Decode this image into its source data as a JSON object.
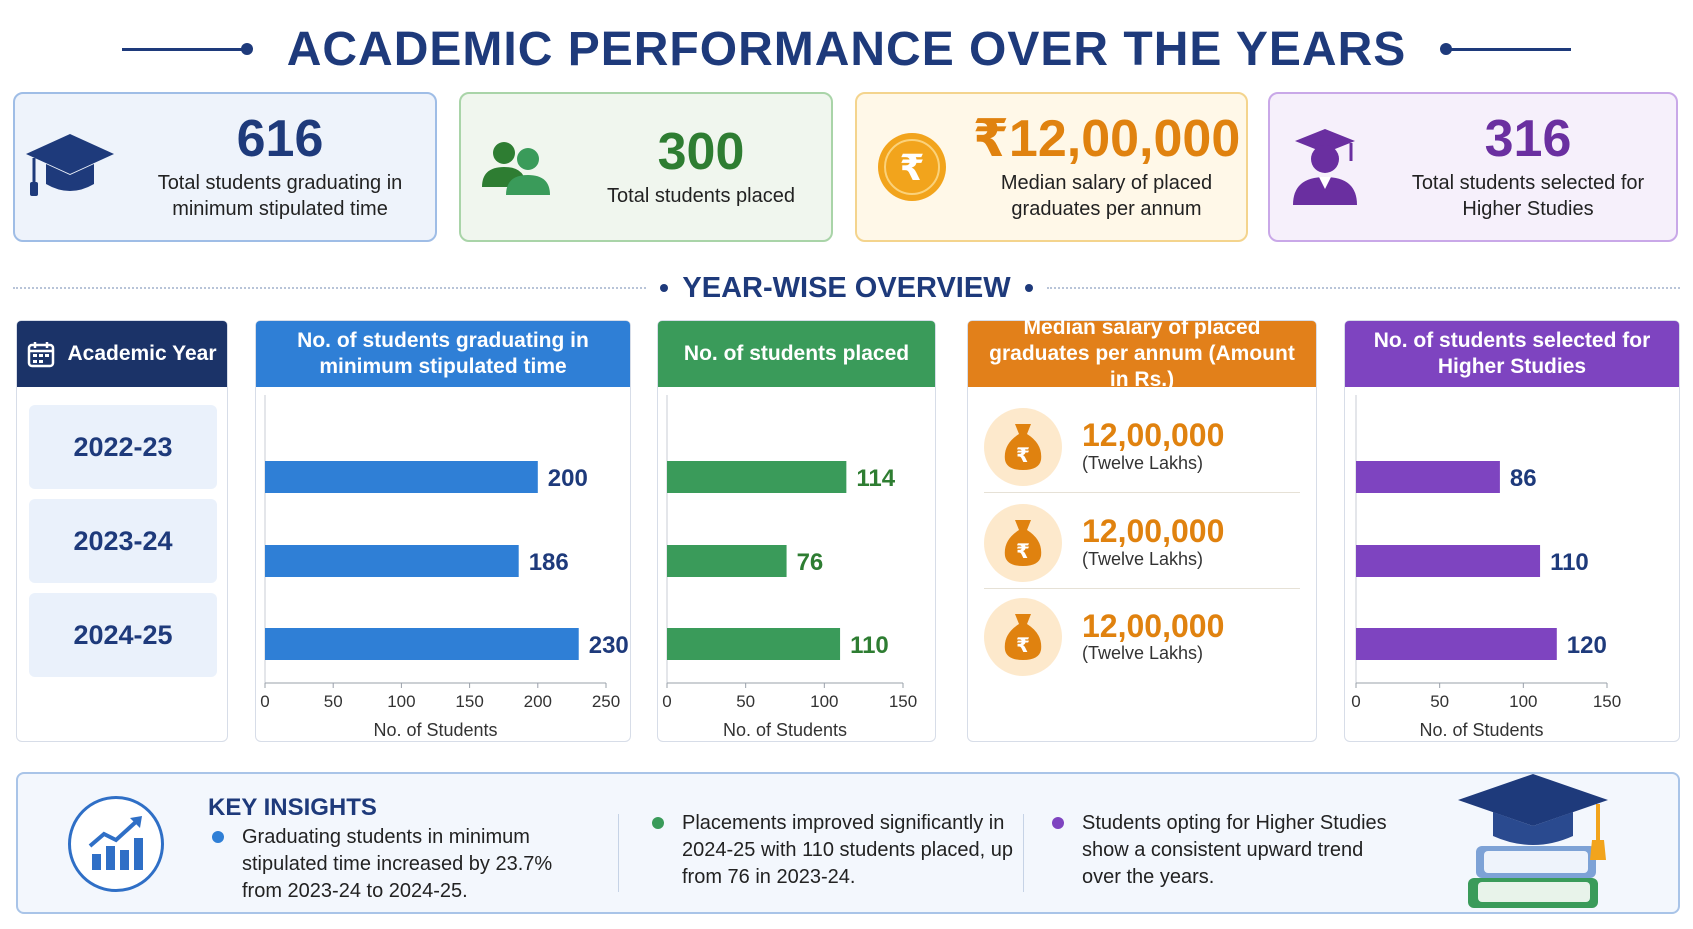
{
  "title": "ACADEMIC PERFORMANCE OVER THE YEARS",
  "summary_cards": [
    {
      "value": "616",
      "label": "Total students graduating in minimum stipulated time",
      "icon": "graduation-cap-icon",
      "color": "#1e3a7b"
    },
    {
      "value": "300",
      "label": "Total students placed",
      "icon": "users-icon",
      "color": "#2e7d32"
    },
    {
      "value": "₹12,00,000",
      "label": "Median salary of placed graduates per annum",
      "icon": "rupee-coin-icon",
      "color": "#e0820f"
    },
    {
      "value": "316",
      "label": "Total students selected for Higher Studies",
      "icon": "graduate-person-icon",
      "color": "#6a2fa0"
    }
  ],
  "section_title": "YEAR-WISE OVERVIEW",
  "year_panel": {
    "header": "Academic Year",
    "icon": "calendar-icon",
    "years": [
      "2022-23",
      "2023-24",
      "2024-25"
    ]
  },
  "salary_panel": {
    "header": "Median salary of placed graduates per annum (Amount in Rs.)",
    "icon": "money-bag-icon",
    "rows": [
      {
        "amount": "12,00,000",
        "words": "(Twelve Lakhs)"
      },
      {
        "amount": "12,00,000",
        "words": "(Twelve Lakhs)"
      },
      {
        "amount": "12,00,000",
        "words": "(Twelve Lakhs)"
      }
    ]
  },
  "chart_data": [
    {
      "type": "bar",
      "orientation": "horizontal",
      "title": "No. of students graduating in minimum stipulated time",
      "categories": [
        "2022-23",
        "2023-24",
        "2024-25"
      ],
      "values": [
        200,
        186,
        230
      ],
      "xlabel": "No. of Students",
      "xlim": [
        0,
        250
      ],
      "ticks": [
        0,
        50,
        100,
        150,
        200,
        250
      ],
      "color": "#2f7fd6",
      "label_color": "#1e3a7b"
    },
    {
      "type": "bar",
      "orientation": "horizontal",
      "title": "No. of students placed",
      "categories": [
        "2022-23",
        "2023-24",
        "2024-25"
      ],
      "values": [
        114,
        76,
        110
      ],
      "xlabel": "No. of Students",
      "xlim": [
        0,
        150
      ],
      "ticks": [
        0,
        50,
        100,
        150
      ],
      "color": "#3a9b5a",
      "label_color": "#2e7d32"
    },
    {
      "type": "bar",
      "orientation": "horizontal",
      "title": "No. of students selected for Higher Studies",
      "categories": [
        "2022-23",
        "2023-24",
        "2024-25"
      ],
      "values": [
        86,
        110,
        120
      ],
      "xlabel": "No. of Students",
      "xlim": [
        0,
        150
      ],
      "ticks": [
        0,
        50,
        100,
        150
      ],
      "color": "#7e44c0",
      "label_color": "#1e3a7b"
    }
  ],
  "insights": {
    "title": "KEY INSIGHTS",
    "icon": "trending-chart-icon",
    "items": [
      {
        "text": "Graduating students in minimum stipulated time increased by 23.7% from 2023-24 to 2024-25.",
        "color": "#2f7fd6"
      },
      {
        "text": "Placements improved significantly in 2024-25 with 110 students placed, up from 76 in 2023-24.",
        "color": "#3a9b5a"
      },
      {
        "text": "Students opting for Higher Studies show a consistent upward trend over the years.",
        "color": "#7e44c0"
      }
    ],
    "illustration": "books-graduation-cap-icon"
  }
}
